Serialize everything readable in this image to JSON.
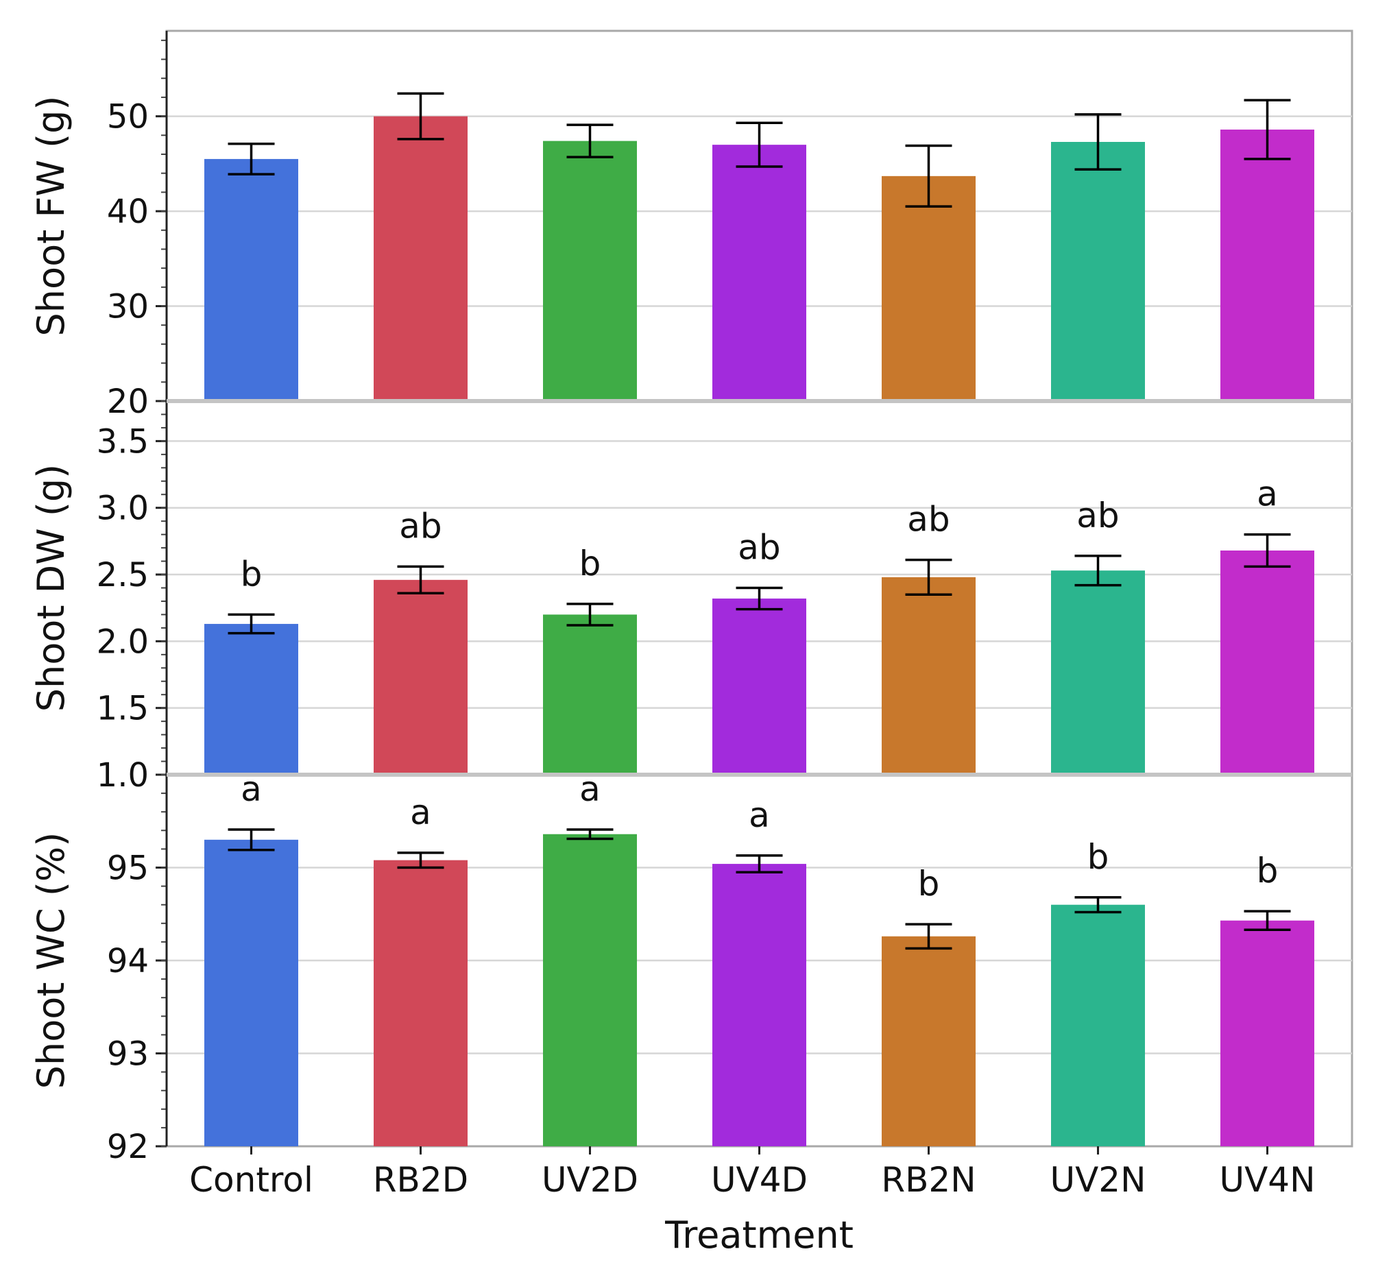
{
  "chart_data": [
    {
      "type": "bar",
      "panel": "top",
      "ylabel": "Shoot FW (g)",
      "ylim": [
        20,
        59
      ],
      "yticks": [
        20,
        30,
        40,
        50
      ],
      "categories": [
        "Control",
        "RB2D",
        "UV2D",
        "UV4D",
        "RB2N",
        "UV2N",
        "UV4N"
      ],
      "values": [
        45.5,
        50.0,
        47.4,
        47.0,
        43.7,
        47.3,
        48.6
      ],
      "errors": [
        1.6,
        2.4,
        1.7,
        2.3,
        3.2,
        2.9,
        3.1
      ],
      "significance": []
    },
    {
      "type": "bar",
      "panel": "middle",
      "ylabel": "Shoot DW (g)",
      "ylim": [
        1.0,
        3.8
      ],
      "yticks": [
        "1.0",
        "1.5",
        "2.0",
        "2.5",
        "3.0",
        "3.5"
      ],
      "categories": [
        "Control",
        "RB2D",
        "UV2D",
        "UV4D",
        "RB2N",
        "UV2N",
        "UV4N"
      ],
      "values": [
        2.13,
        2.46,
        2.2,
        2.32,
        2.48,
        2.53,
        2.68
      ],
      "errors": [
        0.07,
        0.1,
        0.08,
        0.08,
        0.13,
        0.11,
        0.12
      ],
      "significance": [
        "b",
        "ab",
        "b",
        "ab",
        "ab",
        "ab",
        "a"
      ]
    },
    {
      "type": "bar",
      "panel": "bottom",
      "ylabel": "Shoot WC (%)",
      "xlabel": "Treatment",
      "ylim": [
        92,
        96.0
      ],
      "yticks": [
        92,
        93,
        94,
        95
      ],
      "categories": [
        "Control",
        "RB2D",
        "UV2D",
        "UV4D",
        "RB2N",
        "UV2N",
        "UV4N"
      ],
      "values": [
        95.3,
        95.08,
        95.36,
        95.04,
        94.26,
        94.6,
        94.43
      ],
      "errors": [
        0.11,
        0.08,
        0.05,
        0.09,
        0.13,
        0.08,
        0.1
      ],
      "significance": [
        "a",
        "a",
        "a",
        "a",
        "b",
        "b",
        "b"
      ]
    }
  ],
  "colors": [
    "#4472db",
    "#d14858",
    "#3fac46",
    "#a22bdc",
    "#c8782c",
    "#2bb58e",
    "#c22ccb"
  ]
}
